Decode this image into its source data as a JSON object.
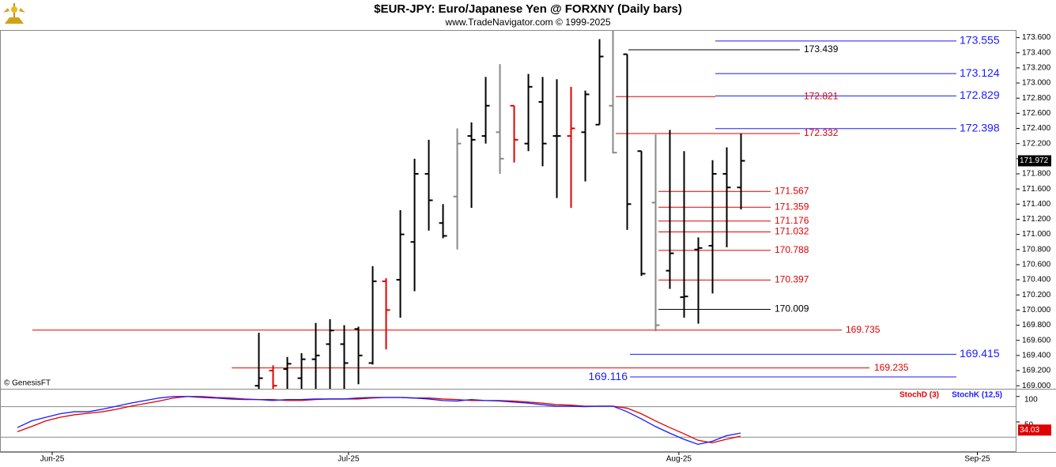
{
  "chart_data": [
    {
      "type": "ohlc",
      "title": "$EUR-JPY:  Euro/Japanese Yen @ FORXNY  (Daily bars)",
      "subtitle": "www.TradeNavigator.com © 1999-2025",
      "annotation": "© GenesisFT",
      "x": [
        17,
        18,
        19,
        20,
        21,
        22,
        23,
        24,
        25,
        26,
        27,
        28,
        29,
        30,
        31,
        32,
        33,
        34,
        35,
        36,
        37,
        38,
        39,
        40,
        41,
        42,
        43,
        44,
        45,
        46,
        47,
        48,
        49,
        50,
        51
      ],
      "open": [
        169.0,
        169.2,
        169.22,
        169.1,
        169.35,
        169.55,
        169.55,
        169.75,
        169.3,
        170.38,
        170.4,
        170.9,
        171.8,
        171.15,
        171.5,
        172.3,
        172.3,
        172.35,
        172.7,
        172.2,
        172.75,
        172.3,
        172.3,
        172.35,
        172.45,
        172.7,
        173.38,
        172.1,
        171.42,
        170.52,
        170.17,
        170.8,
        170.85,
        171.8,
        171.62
      ],
      "high": [
        169.7,
        169.27,
        169.38,
        169.43,
        169.83,
        169.88,
        169.8,
        169.78,
        170.58,
        170.42,
        171.32,
        172.0,
        172.25,
        171.4,
        172.4,
        172.48,
        173.08,
        173.25,
        172.7,
        173.12,
        173.08,
        173.05,
        172.95,
        172.9,
        173.58,
        173.7,
        173.38,
        172.1,
        172.32,
        172.38,
        172.1,
        170.96,
        171.98,
        172.15,
        172.33
      ],
      "low": [
        168.9,
        168.9,
        168.95,
        168.95,
        168.95,
        168.95,
        168.95,
        169.02,
        169.28,
        169.48,
        169.9,
        170.25,
        171.05,
        170.95,
        170.8,
        171.35,
        172.2,
        171.8,
        171.95,
        172.1,
        171.9,
        171.48,
        171.35,
        171.7,
        172.45,
        172.07,
        171.06,
        170.45,
        169.72,
        170.28,
        169.9,
        169.82,
        170.22,
        170.83,
        171.33
      ],
      "close": [
        169.1,
        169.0,
        169.29,
        169.35,
        169.4,
        169.73,
        169.3,
        169.4,
        170.38,
        170.0,
        171.0,
        171.8,
        171.45,
        170.98,
        172.2,
        172.25,
        172.7,
        172.0,
        172.25,
        172.95,
        172.2,
        172.3,
        172.4,
        172.85,
        173.35,
        172.08,
        171.4,
        170.48,
        169.8,
        170.75,
        170.18,
        170.82,
        171.8,
        171.62,
        171.972
      ],
      "bar_colors": [
        "#000000",
        "#e00000",
        "#000000",
        "#000000",
        "#000000",
        "#000000",
        "#000000",
        "#000000",
        "#000000",
        "#e00000",
        "#000000",
        "#000000",
        "#000000",
        "#000000",
        "#888888",
        "#000000",
        "#000000",
        "#888888",
        "#e00000",
        "#000000",
        "#000000",
        "#000000",
        "#e00000",
        "#000000",
        "#000000",
        "#888888",
        "#000000",
        "#000000",
        "#888888",
        "#000000",
        "#000000",
        "#000000",
        "#000000",
        "#000000",
        "#000000"
      ],
      "last_value": 171.972,
      "levels": [
        {
          "value": 173.555,
          "color": "#1a1aff"
        },
        {
          "value": 173.439,
          "color": "#000000"
        },
        {
          "value": 173.124,
          "color": "#1a1aff"
        },
        {
          "value": 172.829,
          "color": "#1a1aff"
        },
        {
          "value": 172.821,
          "color": "#e00000"
        },
        {
          "value": 172.398,
          "color": "#1a1aff"
        },
        {
          "value": 172.332,
          "color": "#e00000"
        },
        {
          "value": 171.567,
          "color": "#e00000"
        },
        {
          "value": 171.359,
          "color": "#e00000"
        },
        {
          "value": 171.176,
          "color": "#e00000"
        },
        {
          "value": 171.032,
          "color": "#e00000"
        },
        {
          "value": 170.788,
          "color": "#e00000"
        },
        {
          "value": 170.397,
          "color": "#e00000"
        },
        {
          "value": 170.009,
          "color": "#000000"
        },
        {
          "value": 169.735,
          "color": "#e00000"
        },
        {
          "value": 169.415,
          "color": "#1a1aff"
        },
        {
          "value": 169.235,
          "color": "#e00000"
        },
        {
          "value": 169.116,
          "color": "#1a1aff"
        }
      ],
      "xlim": [
        -1.23,
        70.46
      ],
      "ylim": [
        168.96,
        173.7
      ],
      "yticks": [
        {
          "value": 169.0,
          "label": "169.000"
        },
        {
          "value": 169.2,
          "label": "169.200"
        },
        {
          "value": 169.4,
          "label": "169.400"
        },
        {
          "value": 169.6,
          "label": "169.600"
        },
        {
          "value": 169.8,
          "label": "169.800"
        },
        {
          "value": 170.0,
          "label": "170.000"
        },
        {
          "value": 170.2,
          "label": "170.200"
        },
        {
          "value": 170.4,
          "label": "170.400"
        },
        {
          "value": 170.6,
          "label": "170.600"
        },
        {
          "value": 170.8,
          "label": "170.800"
        },
        {
          "value": 171.0,
          "label": "171.000"
        },
        {
          "value": 171.2,
          "label": "171.200"
        },
        {
          "value": 171.4,
          "label": "171.400"
        },
        {
          "value": 171.6,
          "label": "171.600"
        },
        {
          "value": 171.8,
          "label": "171.800"
        },
        {
          "value": 172.0,
          "label": "172.000"
        },
        {
          "value": 172.2,
          "label": "172.200"
        },
        {
          "value": 172.4,
          "label": "172.400"
        },
        {
          "value": 172.6,
          "label": "172.600"
        },
        {
          "value": 172.8,
          "label": "172.800"
        },
        {
          "value": 173.0,
          "label": "173.000"
        },
        {
          "value": 173.2,
          "label": "173.200"
        },
        {
          "value": 173.4,
          "label": "173.400"
        },
        {
          "value": 173.6,
          "label": "173.600"
        }
      ]
    },
    {
      "type": "line",
      "series": [
        {
          "name": "StochD (3)",
          "color": "#e00000",
          "values": [
            31,
            41,
            52,
            59,
            64,
            67,
            70,
            75,
            81,
            86,
            91,
            97,
            100,
            100,
            98,
            97,
            95,
            94,
            94,
            92,
            92,
            94,
            95,
            95,
            95,
            97,
            98,
            98,
            97,
            97,
            95,
            94,
            92,
            92,
            92,
            91,
            89,
            87,
            84,
            83,
            81,
            81,
            81,
            77,
            66,
            52,
            39,
            27,
            14,
            9,
            16,
            22
          ]
        },
        {
          "name": "StochK (12,5)",
          "color": "#1a1aff",
          "values": [
            39,
            52,
            59,
            66,
            70,
            70,
            75,
            81,
            87,
            92,
            97,
            100,
            100,
            98,
            97,
            95,
            94,
            94,
            92,
            94,
            94,
            95,
            95,
            95,
            97,
            98,
            98,
            98,
            97,
            95,
            92,
            91,
            94,
            92,
            91,
            89,
            87,
            84,
            81,
            81,
            80,
            81,
            81,
            70,
            56,
            41,
            28,
            16,
            6,
            12,
            23,
            28
          ]
        }
      ],
      "last_value": 34.03,
      "levels": [
        80,
        20
      ],
      "xlim": [
        -1.23,
        70.46
      ],
      "ylim": [
        -9,
        112
      ],
      "yticks": [
        50,
        100
      ],
      "xticks": [
        {
          "value": 2.45,
          "label": "Jun-25"
        },
        {
          "value": 23.35,
          "label": "Jul-25"
        },
        {
          "value": 46.65,
          "label": "Aug-25"
        },
        {
          "value": 67.7,
          "label": "Sep-25"
        }
      ]
    }
  ]
}
